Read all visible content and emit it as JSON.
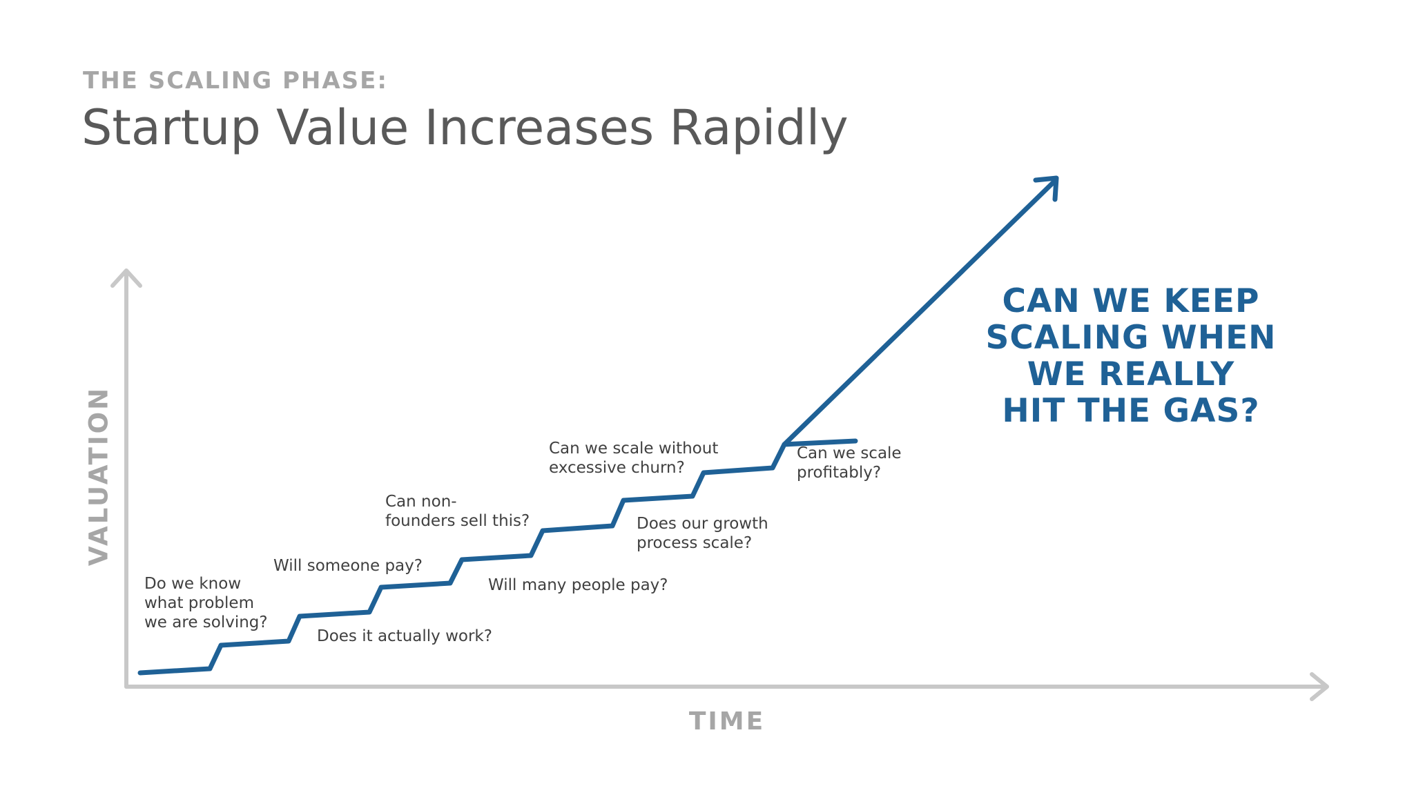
{
  "header": {
    "kicker": "THE SCALING PHASE:",
    "title": "Startup Value Increases Rapidly"
  },
  "axes": {
    "y_label": "VALUATION",
    "x_label": "TIME"
  },
  "questions": [
    {
      "lines": [
        "Do we know",
        "what problem",
        "we are solving?"
      ]
    },
    {
      "lines": [
        "Does it actually work?"
      ]
    },
    {
      "lines": [
        "Will someone pay?"
      ]
    },
    {
      "lines": [
        "Will many people pay?"
      ]
    },
    {
      "lines": [
        "Can non-",
        "founders sell this?"
      ]
    },
    {
      "lines": [
        "Does our growth",
        "process scale?"
      ]
    },
    {
      "lines": [
        "Can we scale without",
        "excessive churn?"
      ]
    },
    {
      "lines": [
        "Can we scale",
        "profitably?"
      ]
    }
  ],
  "callout": {
    "lines": [
      "CAN WE KEEP",
      "SCALING WHEN",
      "WE REALLY",
      "HIT THE GAS?"
    ]
  },
  "colors": {
    "accent": "#1f6196",
    "axis": "#c8c8c8",
    "muted_text": "#a6a6a6",
    "title": "#595959",
    "body_text": "#404040"
  }
}
